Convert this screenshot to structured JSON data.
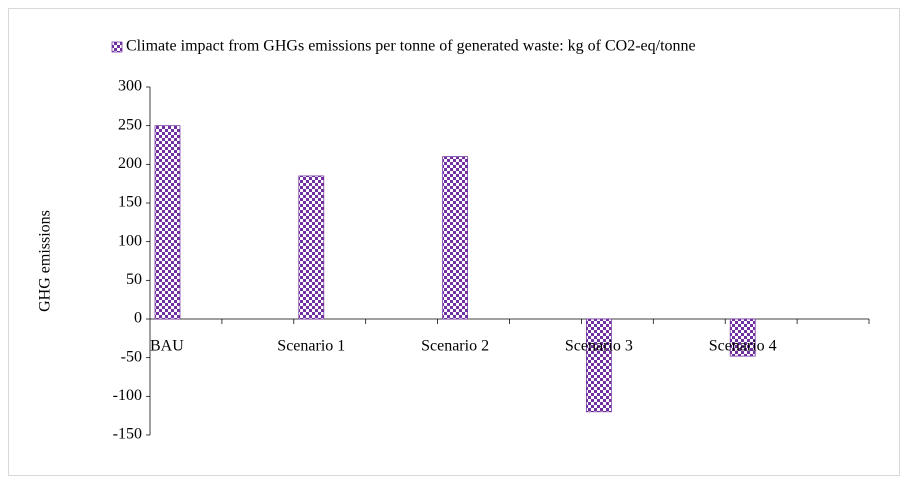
{
  "chart_data": {
    "type": "bar",
    "legend": "Climate impact from GHGs emissions per tonne of generated waste: kg of CO2-eq/tonne",
    "ylabel": "GHG emissions",
    "categories": [
      "BAU",
      "Scenario 1",
      "Scenario 2",
      "Scenario 3",
      "Scenario 4"
    ],
    "values": [
      250,
      185,
      210,
      -120,
      -48
    ],
    "color": "#7030a0",
    "ylim": [
      -150,
      300
    ],
    "yticks": [
      -150,
      -100,
      -50,
      0,
      50,
      100,
      150,
      200,
      250,
      300
    ]
  }
}
